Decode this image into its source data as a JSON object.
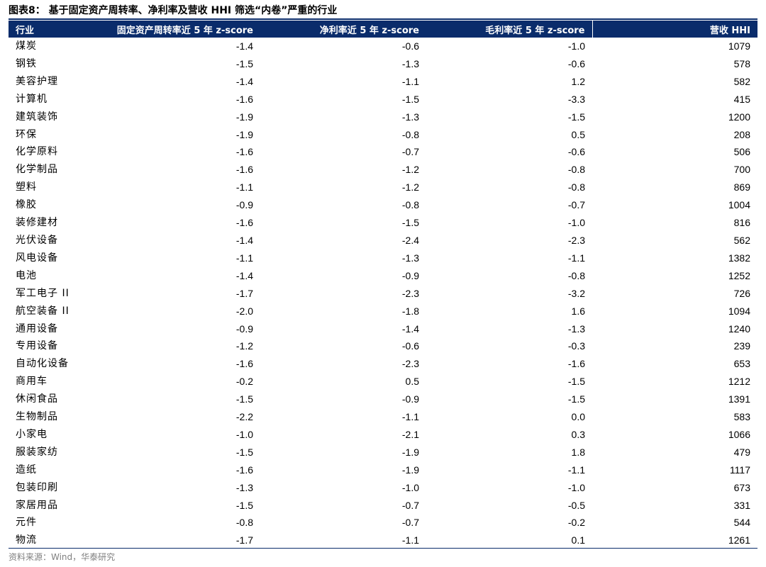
{
  "title": "图表8： 基于固定资产周转率、净利率及营收 HHI 筛选“内卷”严重的行业",
  "colors": {
    "header_bg": "#0a2c6b",
    "header_text": "#ffffff"
  },
  "table": {
    "headers": [
      "行业",
      "固定资产周转率近 5 年 z-score",
      "净利率近 5 年 z-score",
      "毛利率近 5 年 z-score",
      "营收 HHI"
    ],
    "rows": [
      [
        "煤炭",
        "-1.4",
        "-0.6",
        "-1.0",
        "1079"
      ],
      [
        "钢铁",
        "-1.5",
        "-1.3",
        "-0.6",
        "578"
      ],
      [
        "美容护理",
        "-1.4",
        "-1.1",
        "1.2",
        "582"
      ],
      [
        "计算机",
        "-1.6",
        "-1.5",
        "-3.3",
        "415"
      ],
      [
        "建筑装饰",
        "-1.9",
        "-1.3",
        "-1.5",
        "1200"
      ],
      [
        "环保",
        "-1.9",
        "-0.8",
        "0.5",
        "208"
      ],
      [
        "化学原料",
        "-1.6",
        "-0.7",
        "-0.6",
        "506"
      ],
      [
        "化学制品",
        "-1.6",
        "-1.2",
        "-0.8",
        "700"
      ],
      [
        "塑料",
        "-1.1",
        "-1.2",
        "-0.8",
        "869"
      ],
      [
        "橡胶",
        "-0.9",
        "-0.8",
        "-0.7",
        "1004"
      ],
      [
        "装修建材",
        "-1.6",
        "-1.5",
        "-1.0",
        "816"
      ],
      [
        "光伏设备",
        "-1.4",
        "-2.4",
        "-2.3",
        "562"
      ],
      [
        "风电设备",
        "-1.1",
        "-1.3",
        "-1.1",
        "1382"
      ],
      [
        "电池",
        "-1.4",
        "-0.9",
        "-0.8",
        "1252"
      ],
      [
        "军工电子 II",
        "-1.7",
        "-2.3",
        "-3.2",
        "726"
      ],
      [
        "航空装备 II",
        "-2.0",
        "-1.8",
        "1.6",
        "1094"
      ],
      [
        "通用设备",
        "-0.9",
        "-1.4",
        "-1.3",
        "1240"
      ],
      [
        "专用设备",
        "-1.2",
        "-0.6",
        "-0.3",
        "239"
      ],
      [
        "自动化设备",
        "-1.6",
        "-2.3",
        "-1.6",
        "653"
      ],
      [
        "商用车",
        "-0.2",
        "0.5",
        "-1.5",
        "1212"
      ],
      [
        "休闲食品",
        "-1.5",
        "-0.9",
        "-1.5",
        "1391"
      ],
      [
        "生物制品",
        "-2.2",
        "-1.1",
        "0.0",
        "583"
      ],
      [
        "小家电",
        "-1.0",
        "-2.1",
        "0.3",
        "1066"
      ],
      [
        "服装家纺",
        "-1.5",
        "-1.9",
        "1.8",
        "479"
      ],
      [
        "造纸",
        "-1.6",
        "-1.9",
        "-1.1",
        "1117"
      ],
      [
        "包装印刷",
        "-1.3",
        "-1.0",
        "-1.0",
        "673"
      ],
      [
        "家居用品",
        "-1.5",
        "-0.7",
        "-0.5",
        "331"
      ],
      [
        "元件",
        "-0.8",
        "-0.7",
        "-0.2",
        "544"
      ],
      [
        "物流",
        "-1.7",
        "-1.1",
        "0.1",
        "1261"
      ]
    ]
  },
  "source": "资料来源：Wind，华泰研究"
}
